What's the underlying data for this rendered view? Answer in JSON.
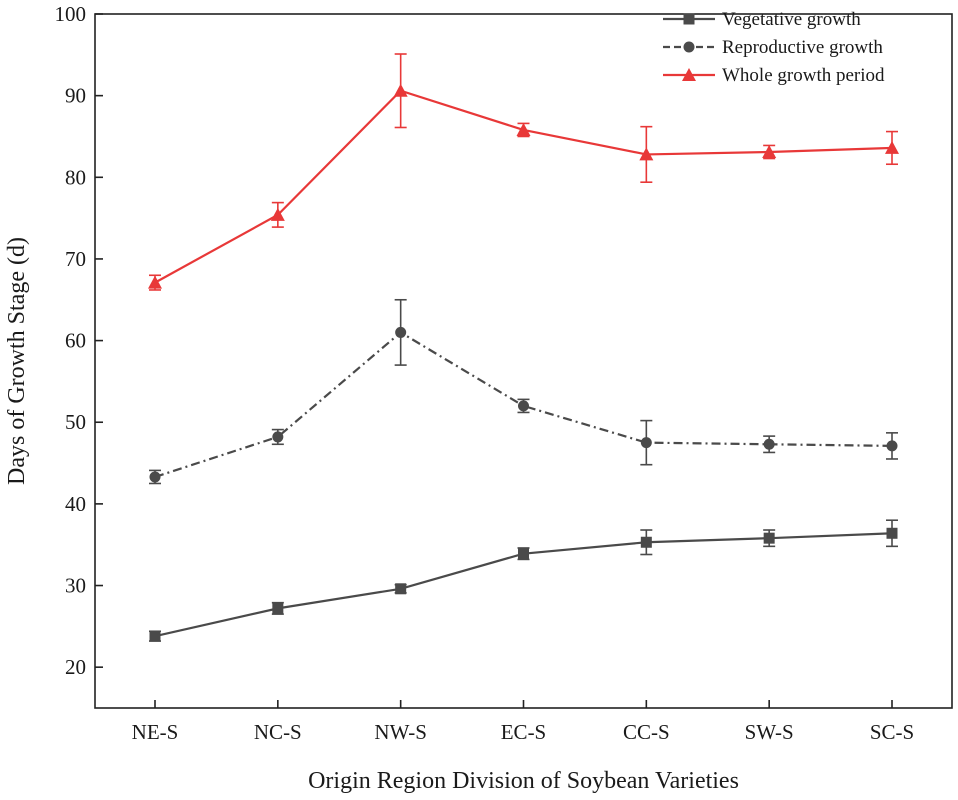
{
  "chart_data": {
    "type": "line",
    "title": "",
    "xlabel": "Origin Region Division of Soybean Varieties",
    "ylabel": "Days of Growth Stage (d)",
    "categories": [
      "NE-S",
      "NC-S",
      "NW-S",
      "EC-S",
      "CC-S",
      "SW-S",
      "SC-S"
    ],
    "ylim": [
      15,
      100
    ],
    "yticks": [
      20,
      30,
      40,
      50,
      60,
      70,
      80,
      90,
      100
    ],
    "legend_position": "top-right",
    "series": [
      {
        "name": "Vegetative growth",
        "color": "#4a4a4a",
        "line_style": "solid",
        "marker": "square",
        "values": [
          23.8,
          27.2,
          29.6,
          33.9,
          35.3,
          35.8,
          36.4
        ],
        "errors": [
          0.6,
          0.7,
          0.5,
          0.7,
          1.5,
          1.0,
          1.6
        ]
      },
      {
        "name": "Reproductive growth",
        "color": "#4a4a4a",
        "line_style": "dash-dot",
        "marker": "circle",
        "values": [
          43.3,
          48.2,
          61.0,
          52.0,
          47.5,
          47.3,
          47.1
        ],
        "errors": [
          0.8,
          0.9,
          4.0,
          0.8,
          2.7,
          1.0,
          1.6
        ]
      },
      {
        "name": "Whole growth period",
        "color": "#e83838",
        "line_style": "solid",
        "marker": "triangle",
        "values": [
          67.1,
          75.4,
          90.6,
          85.8,
          82.8,
          83.1,
          83.6
        ],
        "errors": [
          0.9,
          1.5,
          4.5,
          0.8,
          3.4,
          0.8,
          2.0
        ]
      }
    ]
  }
}
